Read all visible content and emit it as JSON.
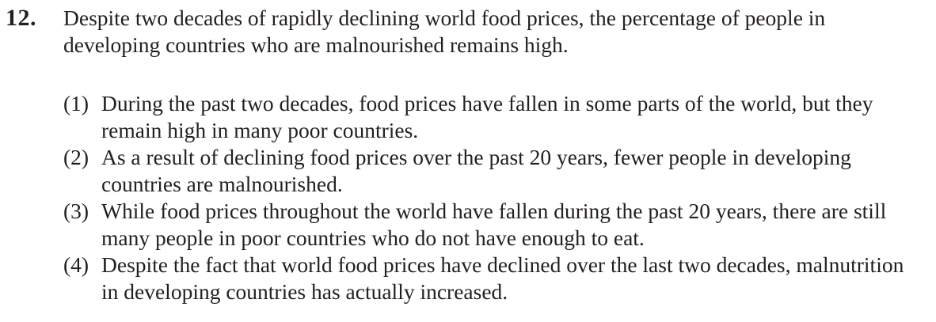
{
  "question": {
    "number": "12.",
    "stem": "Despite two decades of rapidly declining world food prices, the percentage of people in developing countries who are malnourished remains high."
  },
  "options": [
    {
      "num": "(1)",
      "text": "During the past two decades, food prices have fallen in some parts of the world, but they remain high in many poor countries."
    },
    {
      "num": "(2)",
      "text": "As a result of declining food prices over the past 20 years, fewer people in developing countries are malnourished."
    },
    {
      "num": "(3)",
      "text": "While food prices throughout the world have fallen during the past 20 years, there are still many people in poor countries who do not have enough to eat."
    },
    {
      "num": "(4)",
      "text": "Despite the fact that world food prices have declined over the last two decades, malnutrition in developing countries has actually increased."
    }
  ]
}
